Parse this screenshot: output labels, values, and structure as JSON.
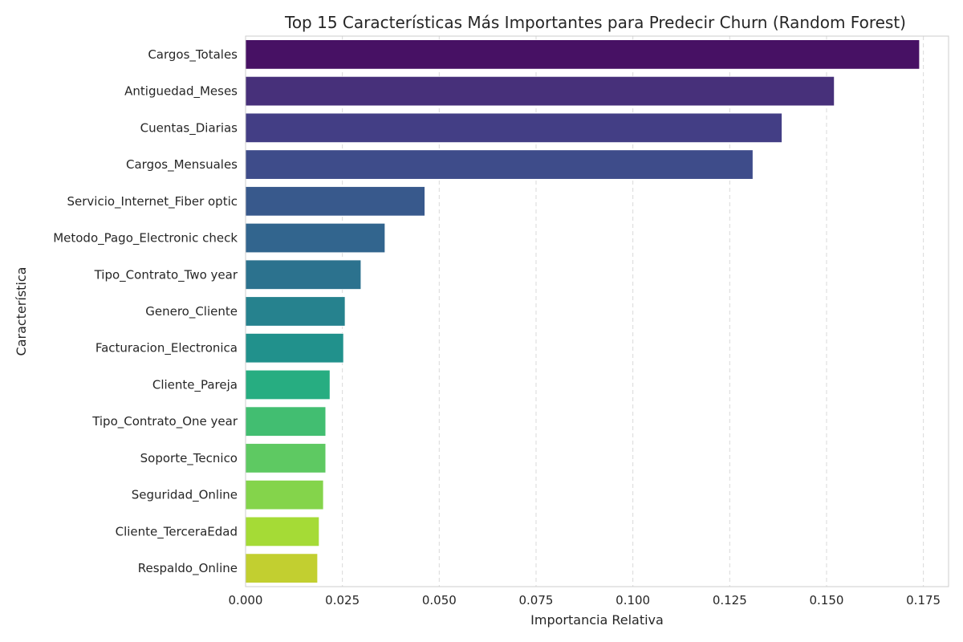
{
  "chart_data": {
    "type": "bar",
    "orientation": "horizontal",
    "title": "Top 15 Características Más Importantes para Predecir Churn (Random Forest)",
    "xlabel": "Importancia Relativa",
    "ylabel": "Característica",
    "xlim": [
      0,
      0.1815
    ],
    "xticks": [
      0,
      0.025,
      0.05,
      0.075,
      0.1,
      0.125,
      0.15,
      0.175
    ],
    "xtick_labels": [
      "0.000",
      "0.025",
      "0.050",
      "0.075",
      "0.100",
      "0.125",
      "0.150",
      "0.175"
    ],
    "grid": true,
    "categories": [
      "Cargos_Totales",
      "Antiguedad_Meses",
      "Cuentas_Diarias",
      "Cargos_Mensuales",
      "Servicio_Internet_Fiber optic",
      "Metodo_Pago_Electronic check",
      "Tipo_Contrato_Two year",
      "Genero_Cliente",
      "Facturacion_Electronica",
      "Cliente_Pareja",
      "Tipo_Contrato_One year",
      "Soporte_Tecnico",
      "Seguridad_Online",
      "Cliente_TerceraEdad",
      "Respaldo_Online"
    ],
    "values": [
      0.174,
      0.152,
      0.1385,
      0.131,
      0.0463,
      0.036,
      0.0298,
      0.0257,
      0.0253,
      0.0218,
      0.0207,
      0.0207,
      0.0201,
      0.019,
      0.0186
    ],
    "colors": [
      "#471164",
      "#47307a",
      "#433e85",
      "#3e4c8a",
      "#38598c",
      "#32658e",
      "#2c728e",
      "#26828e",
      "#21918c",
      "#27ad81",
      "#42be71",
      "#5ec962",
      "#84d44b",
      "#a5db36",
      "#c2cf30"
    ]
  }
}
